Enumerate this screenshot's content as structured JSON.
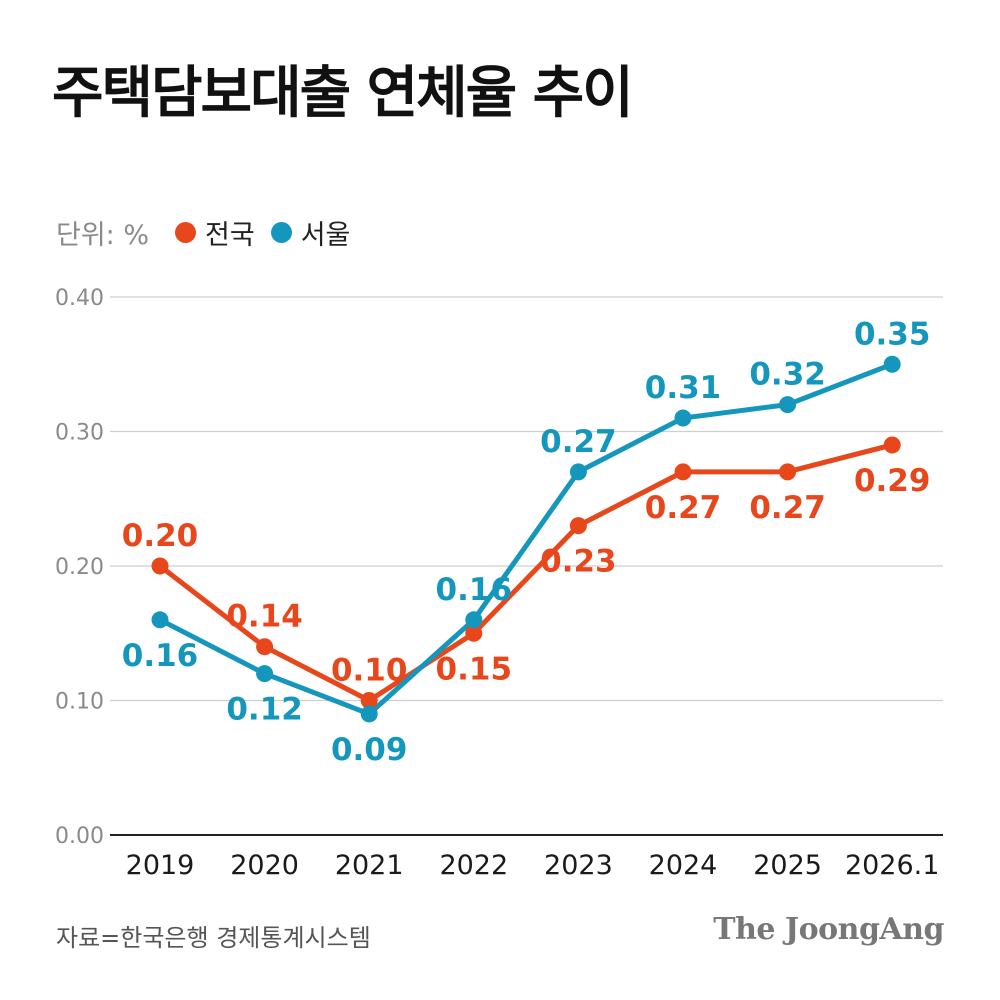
{
  "title": "주택담보대출 연체율 추이",
  "unit_label": "단위: %",
  "legend": [
    {
      "label": "전국",
      "color": "#e8471c",
      "icon": "circle"
    },
    {
      "label": "서울",
      "color": "#1597bd",
      "icon": "circle"
    }
  ],
  "source": "자료=한국은행 경제통계시스템",
  "logo": "The JoongAng",
  "chart_data": {
    "type": "line",
    "categories": [
      "2019",
      "2020",
      "2021",
      "2022",
      "2023",
      "2024",
      "2025",
      "2026.1"
    ],
    "series": [
      {
        "name": "전국",
        "color": "#e8471c",
        "values": [
          0.2,
          0.14,
          0.1,
          0.15,
          0.23,
          0.27,
          0.27,
          0.29
        ],
        "labels": [
          "0.20",
          "0.14",
          "0.10",
          "0.15",
          "0.23",
          "0.27",
          "0.27",
          "0.29"
        ]
      },
      {
        "name": "서울",
        "color": "#1597bd",
        "values": [
          0.16,
          0.12,
          0.09,
          0.16,
          0.27,
          0.31,
          0.32,
          0.35
        ],
        "labels": [
          "0.16",
          "0.12",
          "0.09",
          "0.16",
          "0.27",
          "0.31",
          "0.32",
          "0.35"
        ]
      }
    ],
    "yticks": [
      "0.00",
      "0.10",
      "0.20",
      "0.30",
      "0.40"
    ],
    "ylim": [
      0,
      0.4
    ],
    "grid": true,
    "legend_position": "top-left"
  }
}
